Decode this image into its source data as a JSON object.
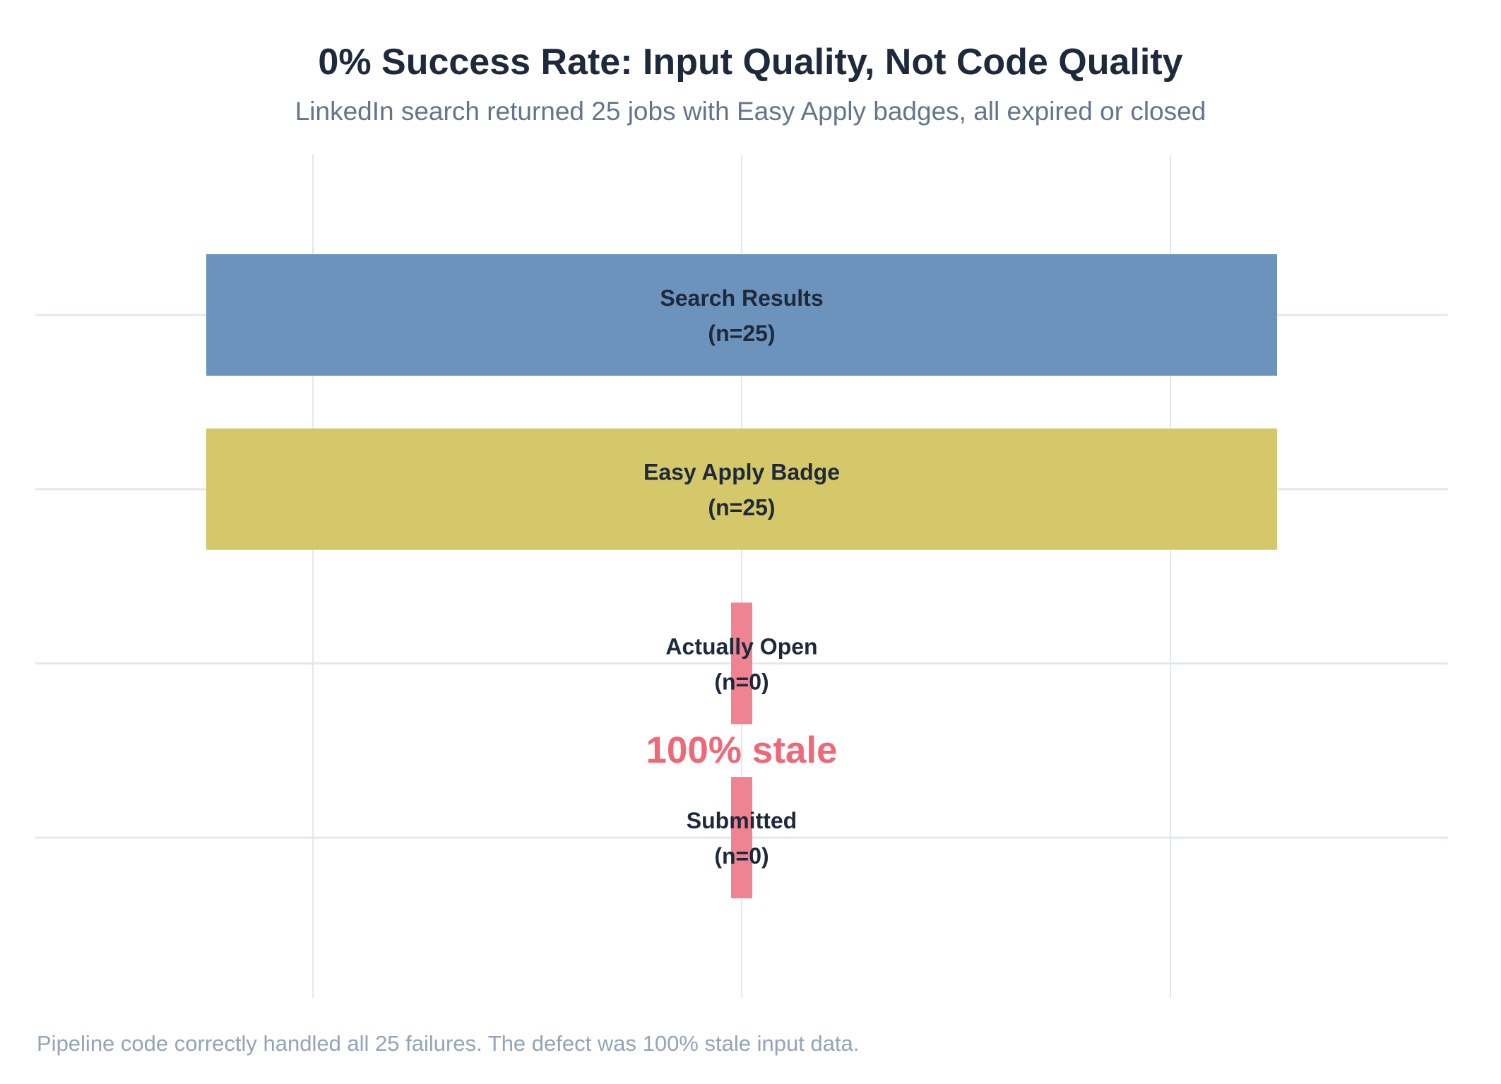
{
  "chart_data": {
    "type": "funnel",
    "title": "0% Success Rate: Input Quality, Not Code Quality",
    "subtitle": "LinkedIn search returned 25 jobs with Easy Apply badges, all expired or closed",
    "footer": "Pipeline code correctly handled all 25 failures. The defect was 100% stale input data.",
    "stages": [
      {
        "name": "Search Results",
        "value": 25,
        "count_label": "(n=25)",
        "color": "#6690b9"
      },
      {
        "name": "Easy Apply Badge",
        "value": 25,
        "count_label": "(n=25)",
        "color": "#d4c666"
      },
      {
        "name": "Actually Open",
        "value": 0,
        "count_label": "(n=0)",
        "color": "#f07f8e"
      },
      {
        "name": "Submitted",
        "value": 0,
        "count_label": "(n=0)",
        "color": "#f07f8e"
      }
    ],
    "annotation": {
      "text": "100% stale",
      "color": "#ee6878"
    },
    "grid": true,
    "gridline_color": "#e2e8f0",
    "xlim": [
      -25,
      25
    ],
    "x_gridlines": [
      -20,
      0,
      20
    ],
    "legend": "none"
  }
}
